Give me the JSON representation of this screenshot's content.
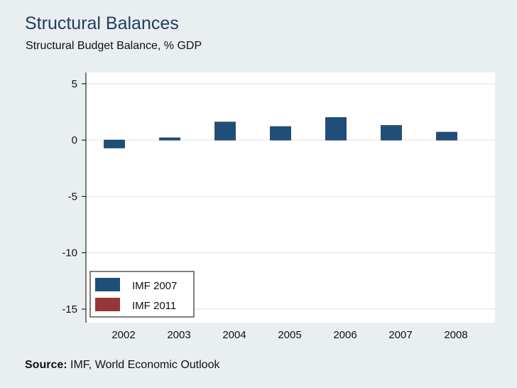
{
  "header": {
    "title": "Structural Balances",
    "subtitle": "Structural Budget Balance, % GDP"
  },
  "footer": {
    "source_label": "Source:",
    "source_text": "IMF, World Economic Outlook"
  },
  "colors": {
    "background": "#e9eef1",
    "plot_background": "#ffffff",
    "imf2007": "#1f4e79",
    "imf2011": "#963639",
    "grid": "#e6ebee"
  },
  "chart_data": {
    "type": "bar",
    "title": "Structural Balances",
    "subtitle": "Structural Budget Balance, % GDP",
    "xlabel": "",
    "ylabel": "",
    "categories": [
      "2002",
      "2003",
      "2004",
      "2005",
      "2006",
      "2007",
      "2008"
    ],
    "series": [
      {
        "name": "IMF 2007",
        "values": [
          -0.7,
          0.2,
          1.6,
          1.2,
          2.0,
          1.3,
          0.7
        ]
      },
      {
        "name": "IMF 2011",
        "values": [
          null,
          null,
          null,
          null,
          null,
          null,
          null
        ]
      }
    ],
    "ylim": [
      -16.2,
      6
    ],
    "yticks": [
      5,
      0,
      -5,
      -10,
      -15
    ],
    "grid": true,
    "legend_position": "bottom-left"
  }
}
